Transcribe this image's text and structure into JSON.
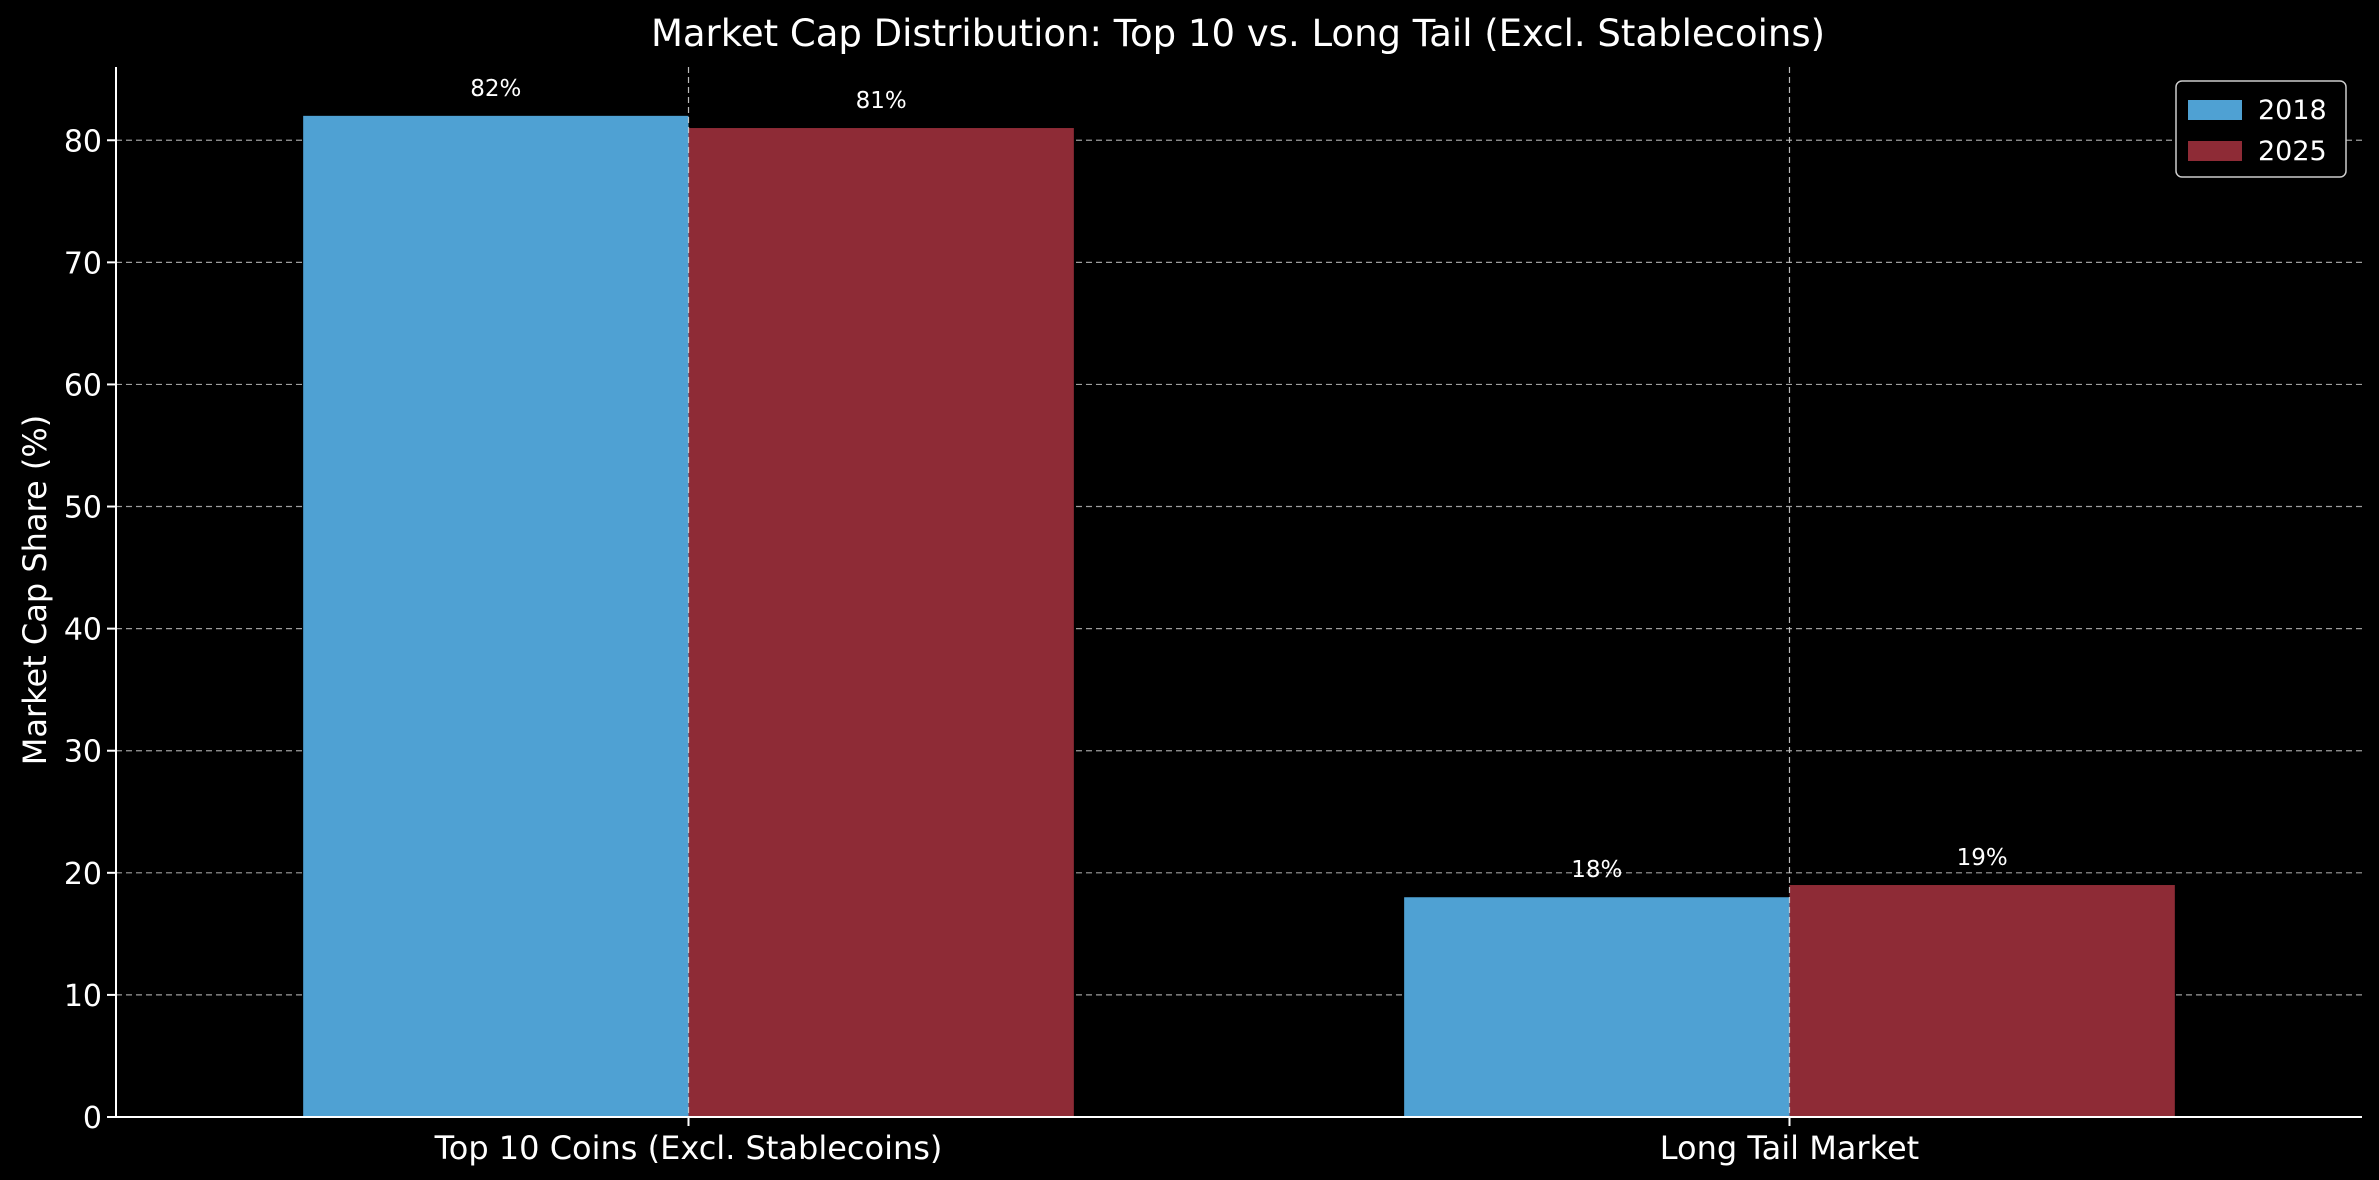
{
  "chart_data": {
    "type": "bar",
    "title": "Market Cap Distribution: Top 10 vs. Long Tail (Excl. Stablecoins)",
    "xlabel": "",
    "ylabel": "Market Cap Share (%)",
    "categories": [
      "Top 10 Coins (Excl. Stablecoins)",
      "Long Tail Market"
    ],
    "series": [
      {
        "name": "2018",
        "values": [
          82,
          18
        ],
        "labels": [
          "82%",
          "18%"
        ],
        "color": "#4fa1d3"
      },
      {
        "name": "2025",
        "values": [
          81,
          19
        ],
        "labels": [
          "81%",
          "19%"
        ],
        "color": "#8e2b36"
      }
    ],
    "ylim": [
      0,
      86
    ],
    "yticks": [
      0,
      10,
      20,
      30,
      40,
      50,
      60,
      70,
      80
    ],
    "grid": true,
    "legend": "top-right"
  }
}
